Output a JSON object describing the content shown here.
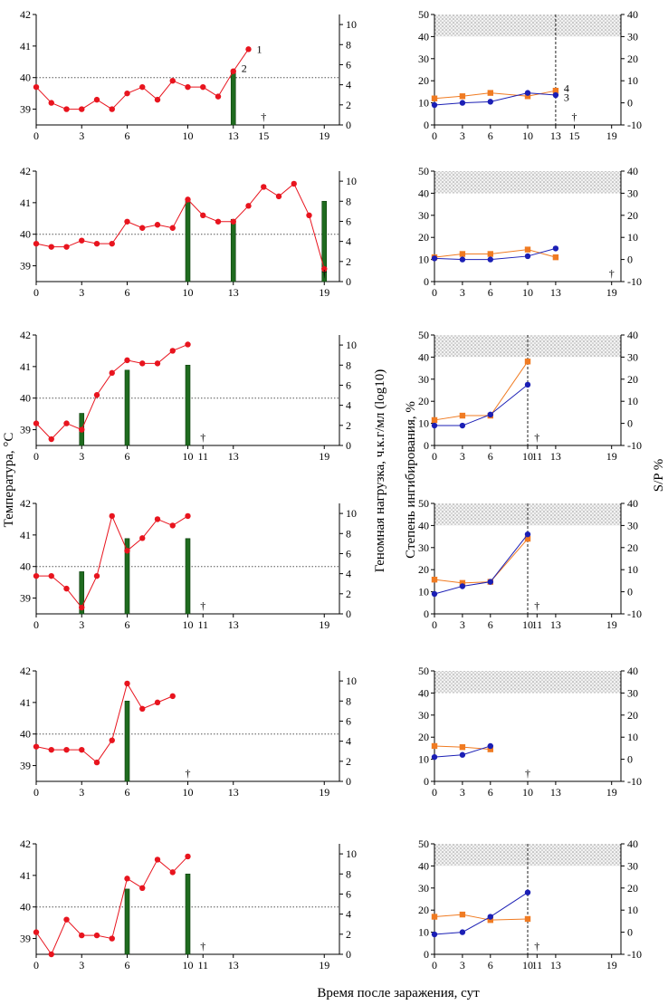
{
  "figure": {
    "xlabel": "Время после заражения, сут",
    "left_ylabel": "Температура, °С",
    "left_y2label": "Геномная нагрузка, ч.к.г/мл (log10)",
    "right_ylabel": "Степень ингибирования, %",
    "right_y2label": "S/P %",
    "dagger": "†"
  },
  "colors": {
    "temperature": "#e8141e",
    "genome_bar": "#1f6b1f",
    "inhibition": "#1b1fb5",
    "sp": "#f07b22",
    "threshold_band": "#cfcfcf"
  },
  "chart_data": [
    {
      "type": "line+bar",
      "panel": "animal-1-temperature",
      "xlim": [
        0,
        20
      ],
      "ylim": [
        38.5,
        42
      ],
      "y2lim": [
        0,
        11
      ],
      "xticks": [
        0,
        3,
        6,
        10,
        13,
        15,
        19
      ],
      "yticks": [
        39,
        40,
        41,
        42
      ],
      "y2ticks": [
        0,
        2,
        4,
        6,
        8,
        10
      ],
      "threshold_temp": 40,
      "series": [
        {
          "name": "Температура",
          "x": [
            0,
            1,
            2,
            3,
            4,
            5,
            6,
            7,
            8,
            9,
            10,
            11,
            12,
            13,
            14
          ],
          "values": [
            39.7,
            39.2,
            39.0,
            39.0,
            39.3,
            39.0,
            39.5,
            39.7,
            39.3,
            39.9,
            39.7,
            39.7,
            39.4,
            40.2,
            40.9
          ]
        },
        {
          "name": "Геномная нагрузка",
          "x": [
            13
          ],
          "values": [
            5.5
          ]
        }
      ],
      "annotations": [
        {
          "text": "1",
          "x": 14,
          "y": 40.9
        },
        {
          "text": "2",
          "x": 13,
          "y": 40.3
        }
      ],
      "death_day": 15
    },
    {
      "type": "line",
      "panel": "animal-1-serology",
      "xlim": [
        0,
        20
      ],
      "ylim": [
        0,
        50
      ],
      "y2lim": [
        -10,
        40
      ],
      "xticks": [
        0,
        3,
        6,
        10,
        13,
        15,
        19
      ],
      "yticks": [
        0,
        10,
        20,
        30,
        40,
        50
      ],
      "y2ticks": [
        -10,
        0,
        10,
        20,
        30,
        40
      ],
      "threshold_band": [
        40,
        50
      ],
      "series": [
        {
          "name": "Степень ингибирования",
          "x": [
            0,
            3,
            6,
            10,
            13
          ],
          "values": [
            9,
            10,
            10.5,
            14.5,
            13.5
          ]
        },
        {
          "name": "S/P",
          "x": [
            0,
            3,
            6,
            10,
            13
          ],
          "values": [
            2,
            3,
            4.5,
            3,
            5.5
          ]
        }
      ],
      "annotations": [
        {
          "text": "4",
          "x": 13,
          "y": 16.5
        },
        {
          "text": "3",
          "x": 13,
          "y": 12.5
        }
      ],
      "dashed_day": 13,
      "death_day": 15
    },
    {
      "type": "line+bar",
      "panel": "animal-2-temperature",
      "xlim": [
        0,
        20
      ],
      "ylim": [
        38.5,
        42
      ],
      "y2lim": [
        0,
        11
      ],
      "xticks": [
        0,
        3,
        6,
        10,
        13,
        19
      ],
      "yticks": [
        39,
        40,
        41,
        42
      ],
      "y2ticks": [
        0,
        2,
        4,
        6,
        8,
        10
      ],
      "threshold_temp": 40,
      "series": [
        {
          "name": "Температура",
          "x": [
            0,
            1,
            2,
            3,
            4,
            5,
            6,
            7,
            8,
            9,
            10,
            11,
            12,
            13,
            14,
            15,
            16,
            17,
            18,
            19
          ],
          "values": [
            39.7,
            39.6,
            39.6,
            39.8,
            39.7,
            39.7,
            40.4,
            40.2,
            40.3,
            40.2,
            41.1,
            40.6,
            40.4,
            40.4,
            40.9,
            41.5,
            41.2,
            41.6,
            40.6,
            38.9
          ]
        },
        {
          "name": "Геномная нагрузка",
          "x": [
            10,
            13,
            19
          ],
          "values": [
            8,
            6.2,
            8
          ]
        }
      ],
      "death_day": 19
    },
    {
      "type": "line",
      "panel": "animal-2-serology",
      "xlim": [
        0,
        20
      ],
      "ylim": [
        0,
        50
      ],
      "y2lim": [
        -10,
        40
      ],
      "xticks": [
        0,
        3,
        6,
        10,
        13,
        19
      ],
      "yticks": [
        0,
        10,
        20,
        30,
        40,
        50
      ],
      "y2ticks": [
        -10,
        0,
        10,
        20,
        30,
        40
      ],
      "threshold_band": [
        40,
        50
      ],
      "series": [
        {
          "name": "Степень ингибирования",
          "x": [
            0,
            3,
            6,
            10,
            13
          ],
          "values": [
            10.5,
            10,
            10,
            11.5,
            15
          ]
        },
        {
          "name": "S/P",
          "x": [
            0,
            3,
            6,
            10,
            13
          ],
          "values": [
            1,
            2.5,
            2.5,
            4.5,
            1
          ]
        }
      ],
      "death_day": 19
    },
    {
      "type": "line+bar",
      "panel": "animal-3-temperature",
      "xlim": [
        0,
        20
      ],
      "ylim": [
        38.5,
        42
      ],
      "y2lim": [
        0,
        11
      ],
      "xticks": [
        0,
        3,
        6,
        10,
        11,
        13,
        19
      ],
      "yticks": [
        39,
        40,
        41,
        42
      ],
      "y2ticks": [
        0,
        2,
        4,
        6,
        8,
        10
      ],
      "threshold_temp": 40,
      "series": [
        {
          "name": "Температура",
          "x": [
            0,
            1,
            2,
            3,
            4,
            5,
            6,
            7,
            8,
            9,
            10
          ],
          "values": [
            39.2,
            38.7,
            39.2,
            39.0,
            40.1,
            40.8,
            41.2,
            41.1,
            41.1,
            41.5,
            41.7
          ]
        },
        {
          "name": "Геномная нагрузка",
          "x": [
            3,
            6,
            10
          ],
          "values": [
            3.2,
            7.5,
            8
          ]
        }
      ],
      "death_day": 11
    },
    {
      "type": "line",
      "panel": "animal-3-serology",
      "xlim": [
        0,
        20
      ],
      "ylim": [
        0,
        50
      ],
      "y2lim": [
        -10,
        40
      ],
      "xticks": [
        0,
        3,
        6,
        10,
        11,
        13,
        19
      ],
      "yticks": [
        0,
        10,
        20,
        30,
        40,
        50
      ],
      "y2ticks": [
        -10,
        0,
        10,
        20,
        30,
        40
      ],
      "threshold_band": [
        40,
        50
      ],
      "series": [
        {
          "name": "Степень ингибирования",
          "x": [
            0,
            3,
            6,
            10
          ],
          "values": [
            9,
            9,
            14,
            27.5
          ]
        },
        {
          "name": "S/P",
          "x": [
            0,
            3,
            6,
            10
          ],
          "values": [
            1.5,
            3.5,
            3.5,
            28
          ]
        }
      ],
      "dashed_day": 10,
      "death_day": 11
    },
    {
      "type": "line+bar",
      "panel": "animal-4-temperature",
      "xlim": [
        0,
        20
      ],
      "ylim": [
        38.5,
        42
      ],
      "y2lim": [
        0,
        11
      ],
      "xticks": [
        0,
        3,
        6,
        10,
        11,
        13,
        19
      ],
      "yticks": [
        39,
        40,
        41,
        42
      ],
      "y2ticks": [
        0,
        2,
        4,
        6,
        8,
        10
      ],
      "threshold_temp": 40,
      "series": [
        {
          "name": "Температура",
          "x": [
            0,
            1,
            2,
            3,
            4,
            5,
            6,
            7,
            8,
            9,
            10
          ],
          "values": [
            39.7,
            39.7,
            39.3,
            38.7,
            39.7,
            41.6,
            40.5,
            40.9,
            41.5,
            41.3,
            41.6
          ]
        },
        {
          "name": "Геномная нагрузка",
          "x": [
            3,
            6,
            10
          ],
          "values": [
            4.2,
            7.5,
            7.5
          ]
        }
      ],
      "death_day": 11
    },
    {
      "type": "line",
      "panel": "animal-4-serology",
      "xlim": [
        0,
        20
      ],
      "ylim": [
        0,
        50
      ],
      "y2lim": [
        -10,
        40
      ],
      "xticks": [
        0,
        3,
        6,
        10,
        11,
        13,
        19
      ],
      "yticks": [
        0,
        10,
        20,
        30,
        40,
        50
      ],
      "y2ticks": [
        -10,
        0,
        10,
        20,
        30,
        40
      ],
      "threshold_band": [
        40,
        50
      ],
      "series": [
        {
          "name": "Степень ингибирования",
          "x": [
            0,
            3,
            6,
            10
          ],
          "values": [
            9,
            12.5,
            14.5,
            36
          ]
        },
        {
          "name": "S/P",
          "x": [
            0,
            3,
            6,
            10
          ],
          "values": [
            5.5,
            4,
            4.5,
            24
          ]
        }
      ],
      "dashed_day": 10,
      "death_day": 11
    },
    {
      "type": "line+bar",
      "panel": "animal-5-temperature",
      "xlim": [
        0,
        20
      ],
      "ylim": [
        38.5,
        42
      ],
      "y2lim": [
        0,
        11
      ],
      "xticks": [
        0,
        3,
        6,
        10,
        13,
        19
      ],
      "yticks": [
        39,
        40,
        41,
        42
      ],
      "y2ticks": [
        0,
        2,
        4,
        6,
        8,
        10
      ],
      "threshold_temp": 40,
      "series": [
        {
          "name": "Температура",
          "x": [
            0,
            1,
            2,
            3,
            4,
            5,
            6,
            7,
            8,
            9
          ],
          "values": [
            39.6,
            39.5,
            39.5,
            39.5,
            39.1,
            39.8,
            41.6,
            40.8,
            41.0,
            41.2
          ]
        },
        {
          "name": "Геномная нагрузка",
          "x": [
            6
          ],
          "values": [
            8
          ]
        }
      ],
      "death_day": 10
    },
    {
      "type": "line",
      "panel": "animal-5-serology",
      "xlim": [
        0,
        20
      ],
      "ylim": [
        0,
        50
      ],
      "y2lim": [
        -10,
        40
      ],
      "xticks": [
        0,
        3,
        6,
        10,
        13,
        19
      ],
      "yticks": [
        0,
        10,
        20,
        30,
        40,
        50
      ],
      "y2ticks": [
        -10,
        0,
        10,
        20,
        30,
        40
      ],
      "threshold_band": [
        40,
        50
      ],
      "series": [
        {
          "name": "Степень ингибирования",
          "x": [
            0,
            3,
            6
          ],
          "values": [
            11,
            12,
            16
          ]
        },
        {
          "name": "S/P",
          "x": [
            0,
            3,
            6
          ],
          "values": [
            6,
            5.5,
            4.5
          ]
        }
      ],
      "death_day": 10
    },
    {
      "type": "line+bar",
      "panel": "animal-6-temperature",
      "xlim": [
        0,
        20
      ],
      "ylim": [
        38.5,
        42
      ],
      "y2lim": [
        0,
        11
      ],
      "xticks": [
        0,
        3,
        6,
        10,
        11,
        13,
        19
      ],
      "yticks": [
        39,
        40,
        41,
        42
      ],
      "y2ticks": [
        0,
        2,
        4,
        6,
        8,
        10
      ],
      "threshold_temp": 40,
      "series": [
        {
          "name": "Температура",
          "x": [
            0,
            1,
            2,
            3,
            4,
            5,
            6,
            7,
            8,
            9,
            10
          ],
          "values": [
            39.2,
            38.5,
            39.6,
            39.1,
            39.1,
            39.0,
            40.9,
            40.6,
            41.5,
            41.1,
            41.6
          ]
        },
        {
          "name": "Геномная нагрузка",
          "x": [
            6,
            10
          ],
          "values": [
            6.5,
            8
          ]
        }
      ],
      "death_day": 11
    },
    {
      "type": "line",
      "panel": "animal-6-serology",
      "xlim": [
        0,
        20
      ],
      "ylim": [
        0,
        50
      ],
      "y2lim": [
        -10,
        40
      ],
      "xticks": [
        0,
        3,
        6,
        10,
        11,
        13,
        19
      ],
      "yticks": [
        0,
        10,
        20,
        30,
        40,
        50
      ],
      "y2ticks": [
        -10,
        0,
        10,
        20,
        30,
        40
      ],
      "threshold_band": [
        40,
        50
      ],
      "series": [
        {
          "name": "Степень ингибирования",
          "x": [
            0,
            3,
            6,
            10
          ],
          "values": [
            9,
            10,
            17,
            28
          ]
        },
        {
          "name": "S/P",
          "x": [
            0,
            3,
            6,
            10
          ],
          "values": [
            7,
            8,
            5.5,
            6
          ]
        }
      ],
      "dashed_day": 10,
      "death_day": 11
    }
  ]
}
